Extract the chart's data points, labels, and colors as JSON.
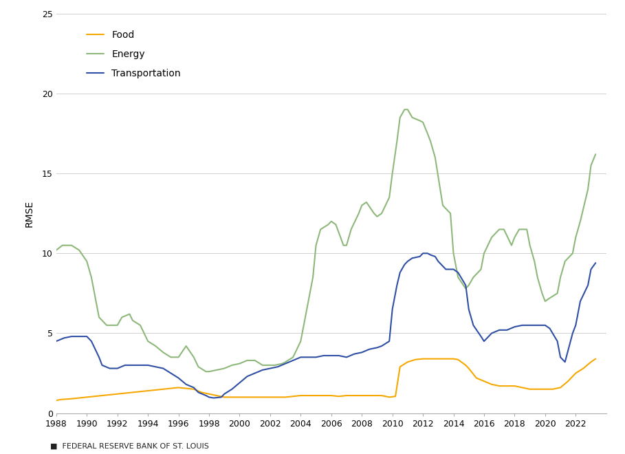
{
  "title": "",
  "ylabel": "RMSE",
  "xlabel": "",
  "footer": "■  FEDERAL RESERVE BANK OF ST. LOUIS",
  "ylim": [
    0,
    25
  ],
  "yticks": [
    0,
    5,
    10,
    15,
    20,
    25
  ],
  "xlim": [
    1988,
    2024
  ],
  "xticks": [
    1988,
    1990,
    1992,
    1994,
    1996,
    1998,
    2000,
    2002,
    2004,
    2006,
    2008,
    2010,
    2012,
    2014,
    2016,
    2018,
    2020,
    2022
  ],
  "legend_labels": [
    "Food",
    "Energy",
    "Transportation"
  ],
  "line_colors": [
    "#F5A800",
    "#8DB87A",
    "#2E4FA3"
  ],
  "background_color": "#FFFFFF",
  "food": {
    "x": [
      1988.0,
      1988.3,
      1989.0,
      1989.5,
      1990.0,
      1990.5,
      1991.0,
      1991.5,
      1992.0,
      1992.5,
      1993.0,
      1993.5,
      1994.0,
      1994.5,
      1995.0,
      1995.5,
      1996.0,
      1996.5,
      1997.0,
      1997.5,
      1998.0,
      1998.5,
      1999.0,
      1999.5,
      2000.0,
      2000.5,
      2001.0,
      2001.5,
      2002.0,
      2002.5,
      2003.0,
      2003.5,
      2004.0,
      2004.5,
      2005.0,
      2005.5,
      2006.0,
      2006.5,
      2007.0,
      2007.5,
      2008.0,
      2008.5,
      2009.0,
      2009.3,
      2009.8,
      2010.2,
      2010.5,
      2011.0,
      2011.5,
      2012.0,
      2012.5,
      2013.0,
      2013.5,
      2014.0,
      2014.3,
      2014.8,
      2015.0,
      2015.5,
      2016.0,
      2016.5,
      2017.0,
      2017.5,
      2018.0,
      2018.5,
      2019.0,
      2019.5,
      2020.0,
      2020.5,
      2021.0,
      2021.5,
      2022.0,
      2022.5,
      2023.0,
      2023.3
    ],
    "y": [
      0.8,
      0.85,
      0.9,
      0.95,
      1.0,
      1.05,
      1.1,
      1.15,
      1.2,
      1.25,
      1.3,
      1.35,
      1.4,
      1.45,
      1.5,
      1.55,
      1.6,
      1.55,
      1.5,
      1.3,
      1.2,
      1.1,
      1.0,
      1.0,
      1.0,
      1.0,
      1.0,
      1.0,
      1.0,
      1.0,
      1.0,
      1.05,
      1.1,
      1.1,
      1.1,
      1.1,
      1.1,
      1.05,
      1.1,
      1.1,
      1.1,
      1.1,
      1.1,
      1.1,
      1.0,
      1.05,
      2.9,
      3.2,
      3.35,
      3.4,
      3.4,
      3.4,
      3.4,
      3.4,
      3.35,
      3.0,
      2.8,
      2.2,
      2.0,
      1.8,
      1.7,
      1.7,
      1.7,
      1.6,
      1.5,
      1.5,
      1.5,
      1.5,
      1.6,
      2.0,
      2.5,
      2.8,
      3.2,
      3.4
    ]
  },
  "energy": {
    "x": [
      1988.0,
      1988.4,
      1989.0,
      1989.5,
      1990.0,
      1990.3,
      1990.8,
      1991.3,
      1991.8,
      1992.0,
      1992.3,
      1992.8,
      1993.0,
      1993.5,
      1994.0,
      1994.5,
      1995.0,
      1995.5,
      1996.0,
      1996.5,
      1997.0,
      1997.3,
      1997.8,
      1998.0,
      1998.5,
      1999.0,
      1999.5,
      2000.0,
      2000.5,
      2001.0,
      2001.5,
      2002.0,
      2002.3,
      2002.8,
      2003.0,
      2003.5,
      2004.0,
      2004.3,
      2004.8,
      2005.0,
      2005.3,
      2005.8,
      2006.0,
      2006.3,
      2006.8,
      2007.0,
      2007.3,
      2007.8,
      2008.0,
      2008.3,
      2008.8,
      2009.0,
      2009.3,
      2009.8,
      2010.0,
      2010.3,
      2010.5,
      2010.8,
      2011.0,
      2011.3,
      2011.8,
      2012.0,
      2012.3,
      2012.5,
      2012.8,
      2013.0,
      2013.3,
      2013.8,
      2014.0,
      2014.3,
      2014.8,
      2015.0,
      2015.3,
      2015.8,
      2016.0,
      2016.5,
      2017.0,
      2017.3,
      2017.8,
      2018.0,
      2018.3,
      2018.8,
      2019.0,
      2019.3,
      2019.5,
      2019.8,
      2020.0,
      2020.3,
      2020.8,
      2021.0,
      2021.3,
      2021.8,
      2022.0,
      2022.3,
      2022.8,
      2023.0,
      2023.3
    ],
    "y": [
      10.2,
      10.5,
      10.5,
      10.2,
      9.5,
      8.5,
      6.0,
      5.5,
      5.5,
      5.5,
      6.0,
      6.2,
      5.8,
      5.5,
      4.5,
      4.2,
      3.8,
      3.5,
      3.5,
      4.2,
      3.5,
      2.9,
      2.6,
      2.6,
      2.7,
      2.8,
      3.0,
      3.1,
      3.3,
      3.3,
      3.0,
      3.0,
      3.0,
      3.1,
      3.2,
      3.5,
      4.5,
      6.0,
      8.5,
      10.5,
      11.5,
      11.8,
      12.0,
      11.8,
      10.5,
      10.5,
      11.5,
      12.5,
      13.0,
      13.2,
      12.5,
      12.3,
      12.5,
      13.5,
      15.0,
      17.0,
      18.5,
      19.0,
      19.0,
      18.5,
      18.3,
      18.2,
      17.5,
      17.0,
      16.0,
      14.8,
      13.0,
      12.5,
      10.0,
      8.5,
      7.8,
      8.0,
      8.5,
      9.0,
      10.0,
      11.0,
      11.5,
      11.5,
      10.5,
      11.0,
      11.5,
      11.5,
      10.5,
      9.5,
      8.5,
      7.5,
      7.0,
      7.2,
      7.5,
      8.5,
      9.5,
      10.0,
      11.0,
      12.0,
      14.0,
      15.5,
      16.2
    ]
  },
  "transportation": {
    "x": [
      1988.0,
      1988.5,
      1989.0,
      1989.5,
      1990.0,
      1990.3,
      1990.8,
      1991.0,
      1991.5,
      1992.0,
      1992.5,
      1993.0,
      1993.5,
      1994.0,
      1994.5,
      1995.0,
      1995.5,
      1996.0,
      1996.5,
      1997.0,
      1997.3,
      1997.8,
      1998.0,
      1998.3,
      1998.8,
      1999.0,
      1999.5,
      2000.0,
      2000.5,
      2001.0,
      2001.5,
      2002.0,
      2002.5,
      2003.0,
      2003.5,
      2004.0,
      2004.5,
      2005.0,
      2005.5,
      2006.0,
      2006.5,
      2007.0,
      2007.5,
      2008.0,
      2008.5,
      2009.0,
      2009.3,
      2009.8,
      2010.0,
      2010.3,
      2010.5,
      2010.8,
      2011.0,
      2011.3,
      2011.8,
      2012.0,
      2012.3,
      2012.5,
      2012.8,
      2013.0,
      2013.5,
      2014.0,
      2014.3,
      2014.8,
      2015.0,
      2015.3,
      2015.8,
      2016.0,
      2016.5,
      2017.0,
      2017.5,
      2018.0,
      2018.5,
      2019.0,
      2019.5,
      2020.0,
      2020.3,
      2020.8,
      2021.0,
      2021.3,
      2021.8,
      2022.0,
      2022.3,
      2022.8,
      2023.0,
      2023.3
    ],
    "y": [
      4.5,
      4.7,
      4.8,
      4.8,
      4.8,
      4.5,
      3.5,
      3.0,
      2.8,
      2.8,
      3.0,
      3.0,
      3.0,
      3.0,
      2.9,
      2.8,
      2.5,
      2.2,
      1.8,
      1.6,
      1.3,
      1.1,
      1.0,
      0.95,
      1.0,
      1.2,
      1.5,
      1.9,
      2.3,
      2.5,
      2.7,
      2.8,
      2.9,
      3.1,
      3.3,
      3.5,
      3.5,
      3.5,
      3.6,
      3.6,
      3.6,
      3.5,
      3.7,
      3.8,
      4.0,
      4.1,
      4.2,
      4.5,
      6.5,
      8.0,
      8.8,
      9.3,
      9.5,
      9.7,
      9.8,
      10.0,
      10.0,
      9.9,
      9.8,
      9.5,
      9.0,
      9.0,
      8.8,
      8.0,
      6.5,
      5.5,
      4.8,
      4.5,
      5.0,
      5.2,
      5.2,
      5.4,
      5.5,
      5.5,
      5.5,
      5.5,
      5.3,
      4.5,
      3.5,
      3.2,
      5.0,
      5.5,
      7.0,
      8.0,
      9.0,
      9.4
    ]
  }
}
